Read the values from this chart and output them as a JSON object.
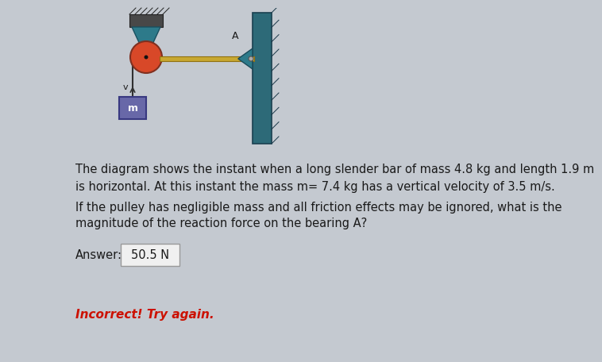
{
  "bg_color": "#c4c9d0",
  "text_line1": "The diagram shows the instant when a long slender bar of mass 4.8 kg and length 1.9 m",
  "text_line2": "is horizontal. At this instant the mass m= 7.4 kg has a vertical velocity of 3.5 m/s.",
  "text_line3": "If the pulley has negligible mass and all friction effects may be ignored, what is the",
  "text_line4": "magnitude of the reaction force on the bearing A?",
  "answer_label": "Answer:",
  "answer_value": "50.5 N",
  "incorrect_text": "Incorrect! Try again.",
  "label_A": "A",
  "label_v": "v",
  "label_m": "m",
  "pulley_color": "#d84828",
  "pulley_bracket_color": "#2d7a8a",
  "bar_color": "#c8a830",
  "wall_color": "#2d6a78",
  "mass_color": "#6868a8",
  "rope_color": "#303030",
  "ceiling_color": "#484848",
  "text_color": "#1a1a1a",
  "incorrect_color": "#cc1100",
  "answer_box_color": "#f0f0f0",
  "fontsize_main": 10.5,
  "fontsize_answer": 10.5,
  "fontsize_incorrect": 11
}
